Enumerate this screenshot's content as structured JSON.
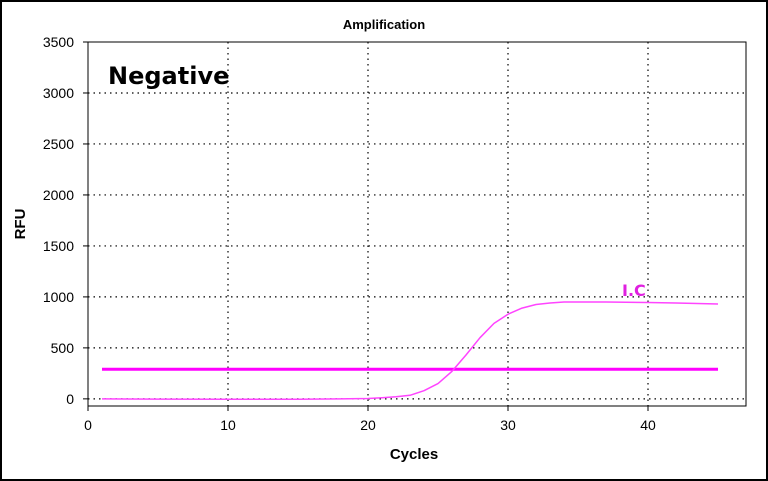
{
  "chart_data": {
    "type": "line",
    "title": "Amplification",
    "xlabel": "Cycles",
    "ylabel": "RFU",
    "xlim": [
      0,
      47
    ],
    "ylim": [
      -70,
      3500
    ],
    "x_ticks": [
      0,
      10,
      20,
      30,
      40
    ],
    "y_ticks": [
      0,
      500,
      1000,
      1500,
      2000,
      2500,
      3000,
      3500
    ],
    "grid": true,
    "annotation": "Negative",
    "series": [
      {
        "name": "I.C",
        "color": "#ff44ff",
        "x": [
          1,
          5,
          10,
          15,
          18,
          20,
          21,
          22,
          23,
          24,
          25,
          26,
          27,
          28,
          29,
          30,
          31,
          32,
          33,
          34,
          35,
          37,
          40,
          42,
          45
        ],
        "values": [
          0,
          -2,
          -3,
          -3,
          0,
          4,
          10,
          20,
          35,
          80,
          150,
          270,
          430,
          600,
          740,
          830,
          890,
          925,
          940,
          950,
          950,
          950,
          945,
          940,
          930
        ]
      }
    ],
    "threshold": {
      "value": 290,
      "x": [
        1,
        45
      ],
      "color": "#ff00ff"
    }
  }
}
